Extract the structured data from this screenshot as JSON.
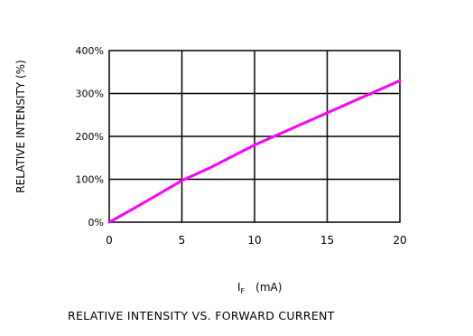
{
  "chart_data": {
    "type": "line",
    "title": "RELATIVE INTENSITY VS. FORWARD CURRENT",
    "xlabel": "Iₓ  (mA)",
    "xlabel_main": "I",
    "xlabel_sub": "F",
    "xlabel_unit": "(mA)",
    "ylabel": "RELATIVE INTENSITY (%)",
    "xlim": [
      0,
      20
    ],
    "ylim": [
      0,
      400
    ],
    "x_ticks": [
      0,
      5,
      10,
      15,
      20
    ],
    "x_tick_labels": [
      "0",
      "5",
      "10",
      "15",
      "20"
    ],
    "y_ticks": [
      0,
      100,
      200,
      300,
      400
    ],
    "y_tick_labels": [
      "0%",
      "100%",
      "200%",
      "300%",
      "400%"
    ],
    "grid": true,
    "series": [
      {
        "color": "#ff00ff",
        "x": [
          0,
          2,
          5,
          7,
          10,
          12,
          15,
          17,
          20
        ],
        "y": [
          0,
          38,
          97,
          128,
          180,
          210,
          255,
          285,
          330
        ]
      }
    ]
  }
}
